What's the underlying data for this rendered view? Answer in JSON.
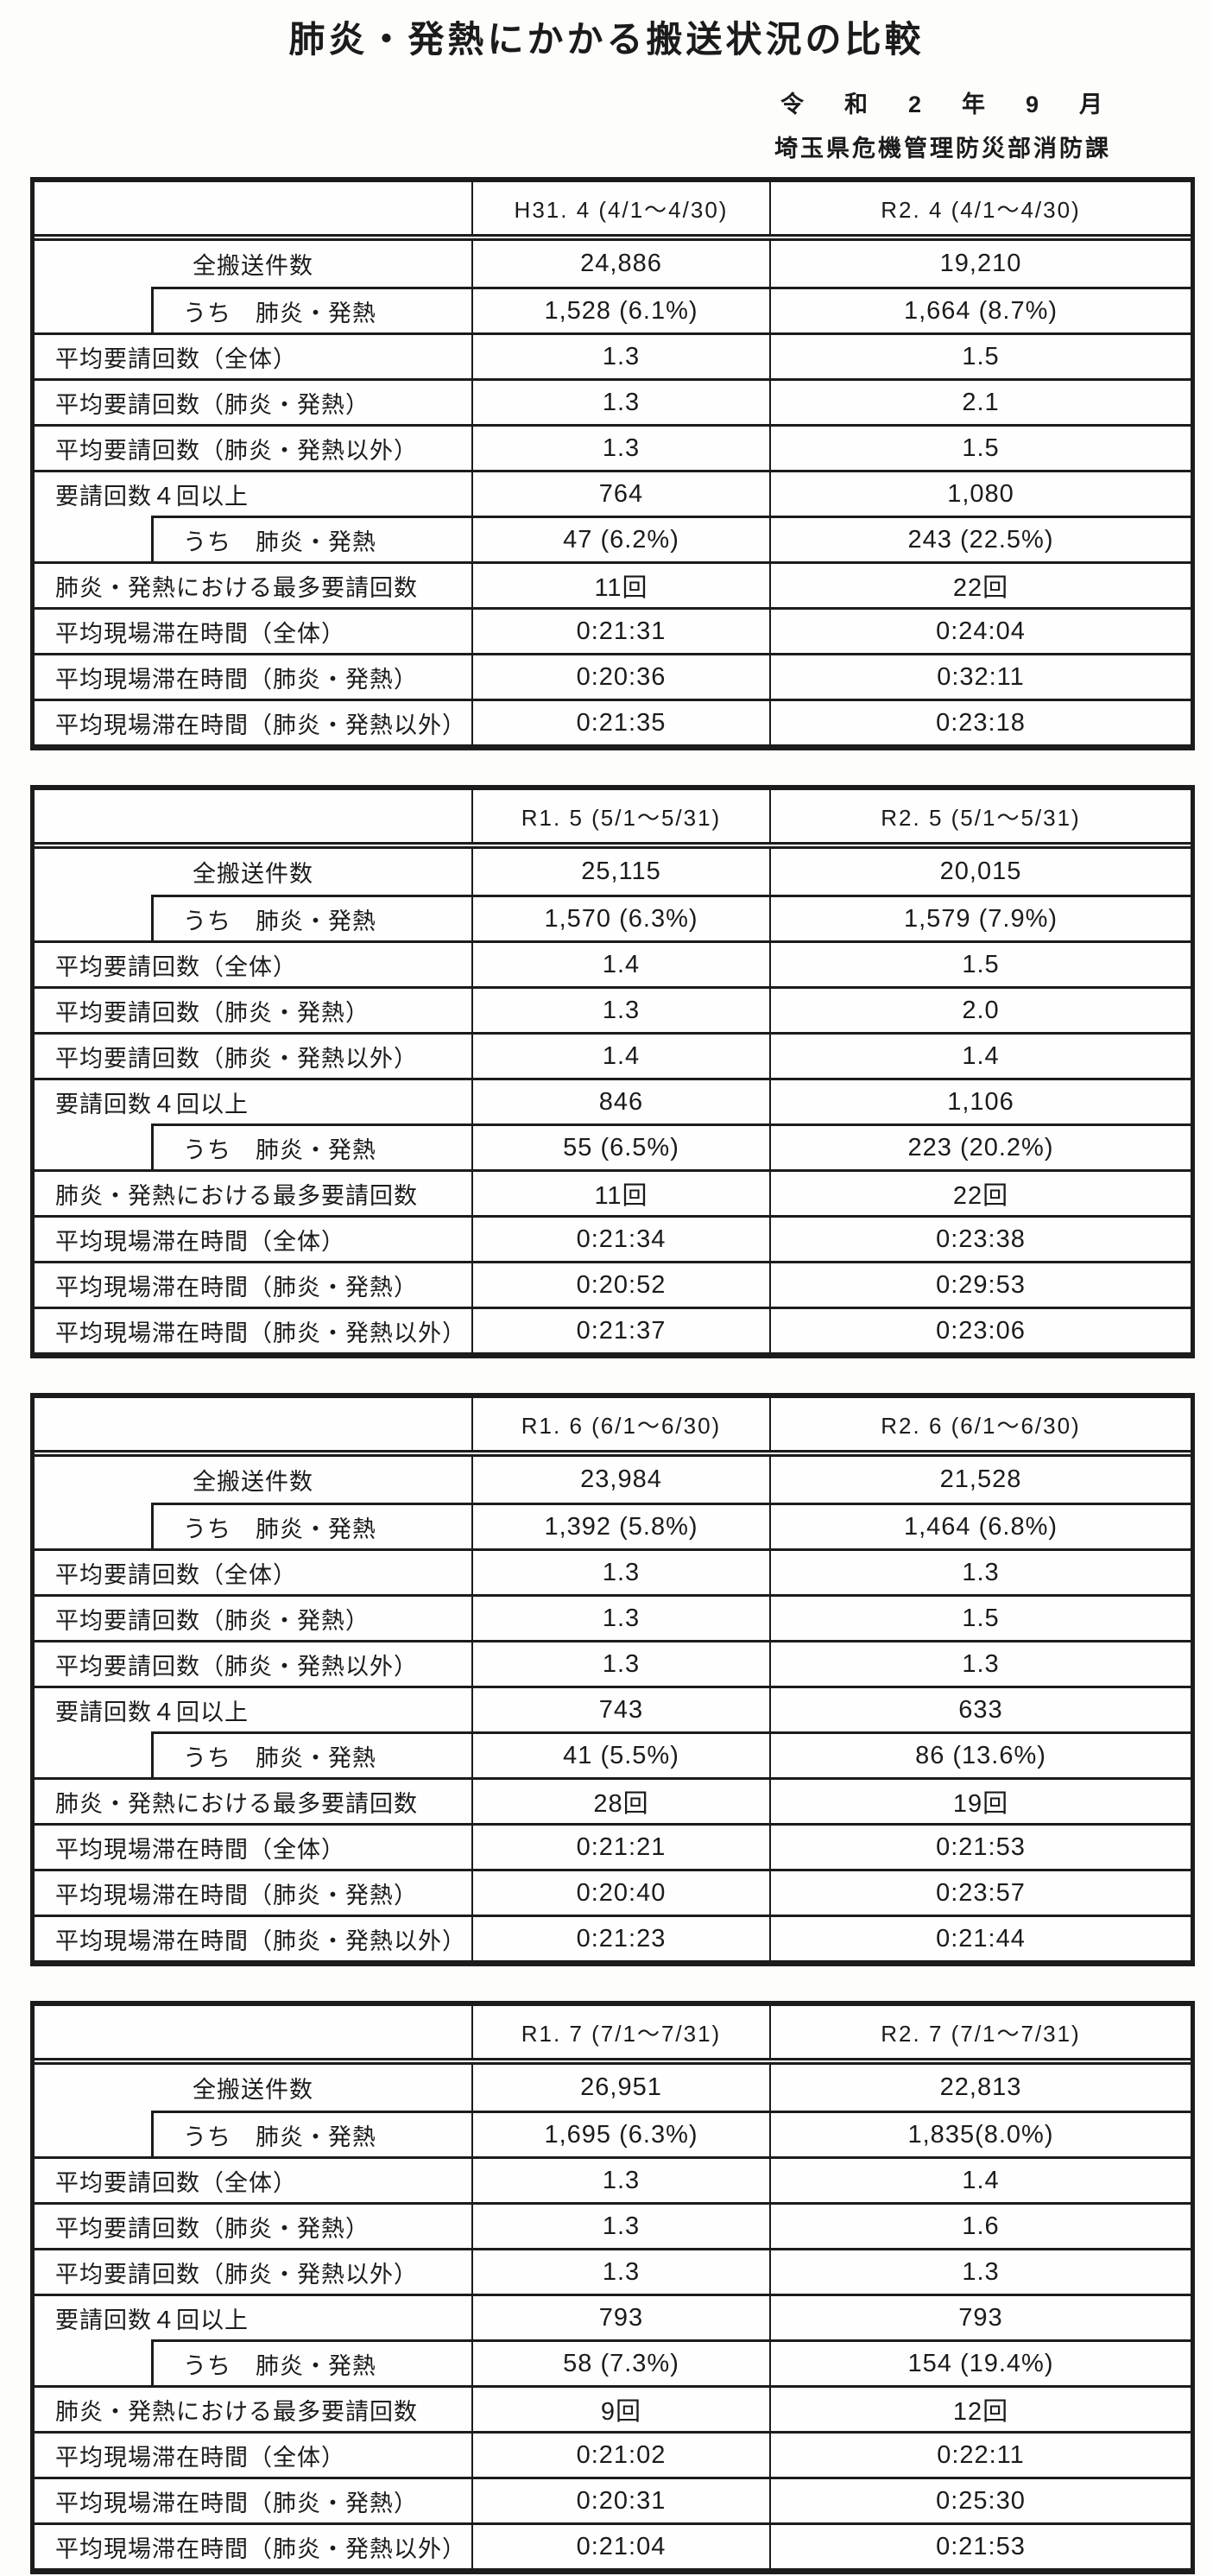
{
  "page": {
    "title": "肺炎・発熱にかかる搬送状況の比較",
    "date_line": "令　和　2　年　9　月",
    "org_line": "埼玉県危機管理防災部消防課"
  },
  "row_labels": [
    "全搬送件数",
    "うち　肺炎・発熱",
    "平均要請回数（全体）",
    "平均要請回数（肺炎・発熱）",
    "平均要請回数（肺炎・発熱以外）",
    "要請回数４回以上",
    "うち　肺炎・発熱",
    "肺炎・発熱における最多要請回数",
    "平均現場滞在時間（全体）",
    "平均現場滞在時間（肺炎・発熱）",
    "平均現場滞在時間（肺炎・発熱以外）"
  ],
  "tables": [
    {
      "col_a_header": "H31. 4 (4/1～4/30)",
      "col_b_header": "R2. 4 (4/1～4/30)",
      "values_a": [
        "24,886",
        "1,528 (6.1%)",
        "1.3",
        "1.3",
        "1.3",
        "764",
        "47 (6.2%)",
        "11回",
        "0:21:31",
        "0:20:36",
        "0:21:35"
      ],
      "values_b": [
        "19,210",
        "1,664 (8.7%)",
        "1.5",
        "2.1",
        "1.5",
        "1,080",
        "243 (22.5%)",
        "22回",
        "0:24:04",
        "0:32:11",
        "0:23:18"
      ]
    },
    {
      "col_a_header": "R1. 5 (5/1～5/31)",
      "col_b_header": "R2. 5 (5/1～5/31)",
      "values_a": [
        "25,115",
        "1,570 (6.3%)",
        "1.4",
        "1.3",
        "1.4",
        "846",
        "55 (6.5%)",
        "11回",
        "0:21:34",
        "0:20:52",
        "0:21:37"
      ],
      "values_b": [
        "20,015",
        "1,579 (7.9%)",
        "1.5",
        "2.0",
        "1.4",
        "1,106",
        "223 (20.2%)",
        "22回",
        "0:23:38",
        "0:29:53",
        "0:23:06"
      ]
    },
    {
      "col_a_header": "R1. 6 (6/1～6/30)",
      "col_b_header": "R2. 6 (6/1～6/30)",
      "values_a": [
        "23,984",
        "1,392 (5.8%)",
        "1.3",
        "1.3",
        "1.3",
        "743",
        "41 (5.5%)",
        "28回",
        "0:21:21",
        "0:20:40",
        "0:21:23"
      ],
      "values_b": [
        "21,528",
        "1,464 (6.8%)",
        "1.3",
        "1.5",
        "1.3",
        "633",
        "86 (13.6%)",
        "19回",
        "0:21:53",
        "0:23:57",
        "0:21:44"
      ]
    },
    {
      "col_a_header": "R1. 7 (7/1～7/31)",
      "col_b_header": "R2. 7 (7/1～7/31)",
      "values_a": [
        "26,951",
        "1,695 (6.3%)",
        "1.3",
        "1.3",
        "1.3",
        "793",
        "58 (7.3%)",
        "9回",
        "0:21:02",
        "0:20:31",
        "0:21:04"
      ],
      "values_b": [
        "22,813",
        "1,835(8.0%)",
        "1.4",
        "1.6",
        "1.3",
        "793",
        "154 (19.4%)",
        "12回",
        "0:22:11",
        "0:25:30",
        "0:21:53"
      ]
    }
  ]
}
